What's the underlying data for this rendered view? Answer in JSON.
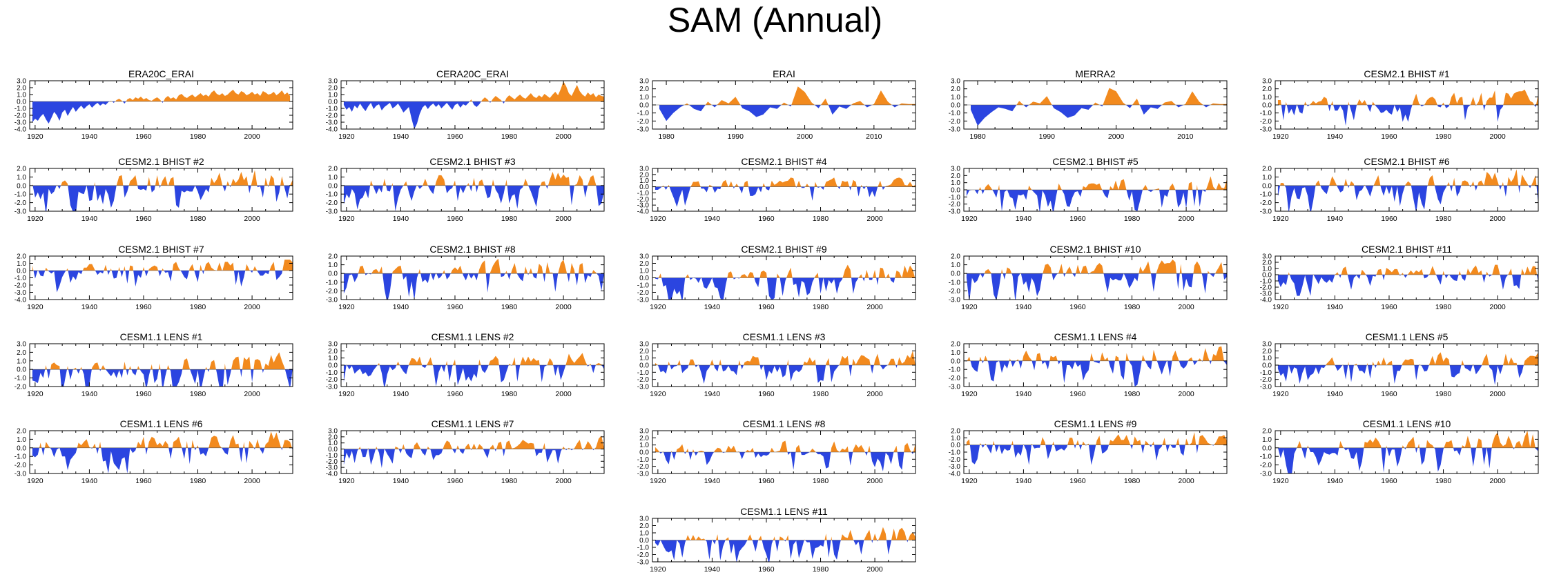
{
  "title": "SAM (Annual)",
  "colors": {
    "positive": "#F28A1E",
    "negative": "#2B45E0",
    "axis": "#000000"
  },
  "chart_data": [
    {
      "type": "area",
      "title": "ERA20C_ERAI",
      "x_range": [
        1918,
        2015
      ],
      "ylim": [
        -4,
        3
      ],
      "y_ticks": [
        "3.0",
        "2.0",
        "1.0",
        "0.0",
        "-1.0",
        "-2.0",
        "-3.0",
        "-4.0"
      ],
      "x_ticks": [
        "1920",
        "1940",
        "1960",
        "1980",
        "2000"
      ],
      "values": [
        -3.0,
        -2.5,
        -2.8,
        -2.2,
        -1.8,
        -2.6,
        -3.2,
        -2.4,
        -1.5,
        -2.0,
        -2.8,
        -1.6,
        -1.2,
        -2.1,
        -1.4,
        -0.8,
        -1.5,
        -1.0,
        -0.6,
        -1.1,
        -0.7,
        -0.4,
        -0.9,
        -0.5,
        -0.2,
        -0.6,
        -0.3,
        -0.5,
        -0.1,
        0.1,
        -0.2,
        0.2,
        0.4,
        0.1,
        -0.3,
        0.3,
        0.5,
        0.2,
        0.6,
        0.4,
        0.7,
        0.3,
        0.5,
        0.2,
        0.1,
        0.4,
        0.6,
        0.3,
        -0.2,
        0.5,
        0.8,
        0.4,
        0.6,
        0.3,
        0.9,
        1.1,
        0.7,
        0.5,
        0.8,
        1.0,
        0.6,
        0.9,
        1.2,
        0.8,
        1.0,
        0.7,
        1.3,
        1.6,
        1.1,
        0.9,
        1.2,
        0.8,
        1.0,
        1.4,
        1.7,
        1.2,
        1.0,
        1.5,
        1.3,
        0.9,
        1.1,
        1.4,
        1.0,
        1.2,
        0.8,
        1.5,
        1.3,
        1.0,
        1.1,
        1.4,
        0.9,
        1.2,
        1.6,
        1.0,
        1.3,
        0.8
      ]
    },
    {
      "type": "area",
      "title": "CERA20C_ERAI",
      "x_range": [
        1918,
        2015
      ],
      "ylim": [
        -4,
        3
      ],
      "y_ticks": [
        "3.0",
        "2.0",
        "1.0",
        "0.0",
        "-1.0",
        "-2.0",
        "-3.0",
        "-4.0"
      ],
      "x_ticks": [
        "1920",
        "1940",
        "1960",
        "1980",
        "2000"
      ],
      "values": [
        -0.5,
        -1.2,
        -0.8,
        -1.5,
        -0.6,
        -1.0,
        -0.3,
        -0.9,
        -1.4,
        -0.7,
        -0.2,
        -1.1,
        -0.6,
        -0.4,
        -1.3,
        -0.8,
        -0.5,
        -0.2,
        -1.0,
        -0.7,
        -0.3,
        -0.9,
        -1.6,
        -1.2,
        -0.8,
        -2.5,
        -4.0,
        -3.2,
        -1.8,
        -0.9,
        -0.5,
        -1.1,
        -0.6,
        -0.3,
        -0.8,
        -0.4,
        -1.0,
        -0.6,
        -0.2,
        -0.7,
        -1.2,
        -0.5,
        -0.3,
        -0.9,
        -0.4,
        -0.6,
        -0.2,
        0.3,
        -0.5,
        -0.8,
        -0.4,
        0.2,
        0.6,
        0.3,
        -0.2,
        0.4,
        0.8,
        0.5,
        0.2,
        -0.3,
        0.5,
        0.9,
        0.6,
        0.3,
        0.7,
        1.0,
        0.6,
        0.4,
        0.8,
        1.2,
        0.7,
        0.5,
        0.9,
        0.6,
        1.1,
        0.8,
        0.5,
        1.0,
        1.4,
        0.9,
        1.8,
        2.9,
        2.2,
        1.2,
        0.8,
        1.6,
        2.4,
        1.5,
        1.0,
        0.7,
        1.3,
        0.9,
        1.2,
        0.6,
        1.0,
        0.8,
        0.7,
        1.1
      ]
    },
    {
      "type": "area",
      "title": "ERAI",
      "x_range": [
        1978,
        2016
      ],
      "ylim": [
        -3,
        3
      ],
      "y_ticks": [
        "3.0",
        "2.0",
        "1.0",
        "0.0",
        "-1.0",
        "-2.0",
        "-3.0"
      ],
      "x_ticks": [
        "1980",
        "1990",
        "2000",
        "2010"
      ],
      "values": [
        -0.5,
        -2.0,
        -1.0,
        -0.3,
        0.2,
        -0.5,
        -0.8,
        0.4,
        -0.3,
        0.6,
        0.2,
        1.0,
        -0.4,
        -0.8,
        -1.5,
        -1.2,
        -0.3,
        -0.5,
        0.3,
        -0.2,
        2.3,
        1.6,
        0.3,
        -0.4,
        0.8,
        -1.2,
        -0.2,
        -0.5,
        0.2,
        0.5,
        -0.3,
        0.1,
        1.8,
        0.4,
        -0.3,
        0.2,
        0.1,
        0.1,
        0.0
      ]
    },
    {
      "type": "area",
      "title": "MERRA2",
      "x_range": [
        1978,
        2016
      ],
      "ylim": [
        -3,
        3
      ],
      "y_ticks": [
        "3.0",
        "2.0",
        "1.0",
        "0.0",
        "-1.0",
        "-2.0",
        "-3.0"
      ],
      "x_ticks": [
        "1980",
        "1990",
        "2000",
        "2010"
      ],
      "values": [
        -0.6,
        -2.6,
        -1.6,
        -0.9,
        -0.3,
        -0.5,
        -0.8,
        0.5,
        -0.3,
        0.4,
        0.2,
        1.1,
        -0.4,
        -0.9,
        -1.6,
        -1.3,
        -0.4,
        -0.6,
        0.3,
        -0.2,
        2.1,
        1.7,
        0.3,
        -0.4,
        0.8,
        -1.2,
        -0.3,
        -0.5,
        0.3,
        0.5,
        -0.3,
        0.1,
        1.7,
        0.4,
        -0.3,
        0.2,
        0.1,
        0.1,
        0.0
      ]
    },
    {
      "type": "area",
      "title": "CESM2.1 BHIST #1",
      "x_range": [
        1918,
        2015
      ],
      "ylim": [
        -3,
        3
      ],
      "y_ticks": [
        "3.0",
        "2.0",
        "1.0",
        "0.0",
        "-1.0",
        "-2.0",
        "-3.0"
      ],
      "x_ticks": [
        "1920",
        "1940",
        "1960",
        "1980",
        "2000"
      ],
      "seed": 5
    },
    {
      "type": "area",
      "title": "CESM2.1 BHIST #2",
      "x_range": [
        1918,
        2015
      ],
      "ylim": [
        -3,
        2
      ],
      "y_ticks": [
        "2.0",
        "1.0",
        "0.0",
        "-1.0",
        "-2.0",
        "-3.0"
      ],
      "x_ticks": [
        "1920",
        "1940",
        "1960",
        "1980",
        "2000"
      ],
      "seed": 6
    },
    {
      "type": "area",
      "title": "CESM2.1 BHIST #3",
      "x_range": [
        1918,
        2015
      ],
      "ylim": [
        -3,
        2
      ],
      "y_ticks": [
        "2.0",
        "1.0",
        "0.0",
        "-1.0",
        "-2.0",
        "-3.0"
      ],
      "x_ticks": [
        "1920",
        "1940",
        "1960",
        "1980",
        "2000"
      ],
      "seed": 7
    },
    {
      "type": "area",
      "title": "CESM2.1 BHIST #4",
      "x_range": [
        1918,
        2015
      ],
      "ylim": [
        -4,
        3
      ],
      "y_ticks": [
        "3.0",
        "2.0",
        "1.0",
        "0.0",
        "-1.0",
        "-2.0",
        "-3.0",
        "-4.0"
      ],
      "x_ticks": [
        "1920",
        "1940",
        "1960",
        "1980",
        "2000"
      ],
      "seed": 8
    },
    {
      "type": "area",
      "title": "CESM2.1 BHIST #5",
      "x_range": [
        1918,
        2015
      ],
      "ylim": [
        -3,
        3
      ],
      "y_ticks": [
        "3.0",
        "2.0",
        "1.0",
        "0.0",
        "-1.0",
        "-2.0",
        "-3.0"
      ],
      "x_ticks": [
        "1920",
        "1940",
        "1960",
        "1980",
        "2000"
      ],
      "seed": 9
    },
    {
      "type": "area",
      "title": "CESM2.1 BHIST #6",
      "x_range": [
        1918,
        2015
      ],
      "ylim": [
        -3,
        2
      ],
      "y_ticks": [
        "2.0",
        "1.0",
        "0.0",
        "-1.0",
        "-2.0",
        "-3.0"
      ],
      "x_ticks": [
        "1920",
        "1940",
        "1960",
        "1980",
        "2000"
      ],
      "seed": 10
    },
    {
      "type": "area",
      "title": "CESM2.1 BHIST #7",
      "x_range": [
        1918,
        2015
      ],
      "ylim": [
        -4,
        2
      ],
      "y_ticks": [
        "2.0",
        "1.0",
        "0.0",
        "-1.0",
        "-2.0",
        "-3.0",
        "-4.0"
      ],
      "x_ticks": [
        "1920",
        "1940",
        "1960",
        "1980",
        "2000"
      ],
      "seed": 11
    },
    {
      "type": "area",
      "title": "CESM2.1 BHIST #8",
      "x_range": [
        1918,
        2015
      ],
      "ylim": [
        -3,
        2
      ],
      "y_ticks": [
        "2.0",
        "1.0",
        "0.0",
        "-1.0",
        "-2.0",
        "-3.0"
      ],
      "x_ticks": [
        "1920",
        "1940",
        "1960",
        "1980",
        "2000"
      ],
      "seed": 12
    },
    {
      "type": "area",
      "title": "CESM2.1 BHIST #9",
      "x_range": [
        1918,
        2015
      ],
      "ylim": [
        -3,
        3
      ],
      "y_ticks": [
        "3.0",
        "2.0",
        "1.0",
        "0.0",
        "-1.0",
        "-2.0",
        "-3.0"
      ],
      "x_ticks": [
        "1920",
        "1940",
        "1960",
        "1980",
        "2000"
      ],
      "seed": 13
    },
    {
      "type": "area",
      "title": "CESM2.1 BHIST #10",
      "x_range": [
        1918,
        2015
      ],
      "ylim": [
        -3,
        2
      ],
      "y_ticks": [
        "2.0",
        "1.0",
        "0.0",
        "-1.0",
        "-2.0",
        "-3.0"
      ],
      "x_ticks": [
        "1920",
        "1940",
        "1960",
        "1980",
        "2000"
      ],
      "seed": 14
    },
    {
      "type": "area",
      "title": "CESM2.1 BHIST #11",
      "x_range": [
        1918,
        2015
      ],
      "ylim": [
        -4,
        3
      ],
      "y_ticks": [
        "3.0",
        "2.0",
        "1.0",
        "0.0",
        "-1.0",
        "-2.0",
        "-3.0",
        "-4.0"
      ],
      "x_ticks": [
        "1920",
        "1940",
        "1960",
        "1980",
        "2000"
      ],
      "seed": 15
    },
    {
      "type": "area",
      "title": "CESM1.1 LENS #1",
      "x_range": [
        1918,
        2015
      ],
      "ylim": [
        -2,
        3
      ],
      "y_ticks": [
        "3.0",
        "2.0",
        "1.0",
        "0.0",
        "-1.0",
        "-2.0"
      ],
      "x_ticks": [
        "1920",
        "1940",
        "1960",
        "1980",
        "2000"
      ],
      "seed": 16
    },
    {
      "type": "area",
      "title": "CESM1.1 LENS #2",
      "x_range": [
        1918,
        2015
      ],
      "ylim": [
        -3,
        3
      ],
      "y_ticks": [
        "3.0",
        "2.0",
        "1.0",
        "0.0",
        "-1.0",
        "-2.0",
        "-3.0"
      ],
      "x_ticks": [
        "1920",
        "1940",
        "1960",
        "1980",
        "2000"
      ],
      "seed": 17
    },
    {
      "type": "area",
      "title": "CESM1.1 LENS #3",
      "x_range": [
        1918,
        2015
      ],
      "ylim": [
        -3,
        3
      ],
      "y_ticks": [
        "3.0",
        "2.0",
        "1.0",
        "0.0",
        "-1.0",
        "-2.0",
        "-3.0"
      ],
      "x_ticks": [
        "1920",
        "1940",
        "1960",
        "1980",
        "2000"
      ],
      "seed": 18
    },
    {
      "type": "area",
      "title": "CESM1.1 LENS #4",
      "x_range": [
        1918,
        2015
      ],
      "ylim": [
        -3,
        2
      ],
      "y_ticks": [
        "2.0",
        "1.0",
        "0.0",
        "-1.0",
        "-2.0",
        "-3.0"
      ],
      "x_ticks": [
        "1920",
        "1940",
        "1960",
        "1980",
        "2000"
      ],
      "seed": 19
    },
    {
      "type": "area",
      "title": "CESM1.1 LENS #5",
      "x_range": [
        1918,
        2015
      ],
      "ylim": [
        -3,
        3
      ],
      "y_ticks": [
        "3.0",
        "2.0",
        "1.0",
        "0.0",
        "-1.0",
        "-2.0",
        "-3.0"
      ],
      "x_ticks": [
        "1920",
        "1940",
        "1960",
        "1980",
        "2000"
      ],
      "seed": 20
    },
    {
      "type": "area",
      "title": "CESM1.1 LENS #6",
      "x_range": [
        1918,
        2015
      ],
      "ylim": [
        -3,
        2
      ],
      "y_ticks": [
        "2.0",
        "1.0",
        "0.0",
        "-1.0",
        "-2.0",
        "-3.0"
      ],
      "x_ticks": [
        "1920",
        "1940",
        "1960",
        "1980",
        "2000"
      ],
      "seed": 21
    },
    {
      "type": "area",
      "title": "CESM1.1 LENS #7",
      "x_range": [
        1918,
        2015
      ],
      "ylim": [
        -4,
        3
      ],
      "y_ticks": [
        "3.0",
        "2.0",
        "1.0",
        "0.0",
        "-1.0",
        "-2.0",
        "-3.0",
        "-4.0"
      ],
      "x_ticks": [
        "1920",
        "1940",
        "1960",
        "1980",
        "2000"
      ],
      "seed": 22
    },
    {
      "type": "area",
      "title": "CESM1.1 LENS #8",
      "x_range": [
        1918,
        2015
      ],
      "ylim": [
        -3,
        3
      ],
      "y_ticks": [
        "3.0",
        "2.0",
        "1.0",
        "0.0",
        "-1.0",
        "-2.0",
        "-3.0"
      ],
      "x_ticks": [
        "1920",
        "1940",
        "1960",
        "1980",
        "2000"
      ],
      "seed": 23
    },
    {
      "type": "area",
      "title": "CESM1.1 LENS #9",
      "x_range": [
        1918,
        2015
      ],
      "ylim": [
        -4,
        2
      ],
      "y_ticks": [
        "2.0",
        "1.0",
        "0.0",
        "-1.0",
        "-2.0",
        "-3.0",
        "-4.0"
      ],
      "x_ticks": [
        "1920",
        "1940",
        "1960",
        "1980",
        "2000"
      ],
      "seed": 24
    },
    {
      "type": "area",
      "title": "CESM1.1 LENS #10",
      "x_range": [
        1918,
        2015
      ],
      "ylim": [
        -3,
        2
      ],
      "y_ticks": [
        "2.0",
        "1.0",
        "0.0",
        "-1.0",
        "-2.0",
        "-3.0"
      ],
      "x_ticks": [
        "1920",
        "1940",
        "1960",
        "1980",
        "2000"
      ],
      "seed": 25
    },
    {
      "type": "area",
      "title": "CESM1.1 LENS #11",
      "x_range": [
        1918,
        2015
      ],
      "ylim": [
        -3,
        3
      ],
      "y_ticks": [
        "3.0",
        "2.0",
        "1.0",
        "0.0",
        "-1.0",
        "-2.0",
        "-3.0"
      ],
      "x_ticks": [
        "1920",
        "1940",
        "1960",
        "1980",
        "2000"
      ],
      "seed": 26
    }
  ]
}
